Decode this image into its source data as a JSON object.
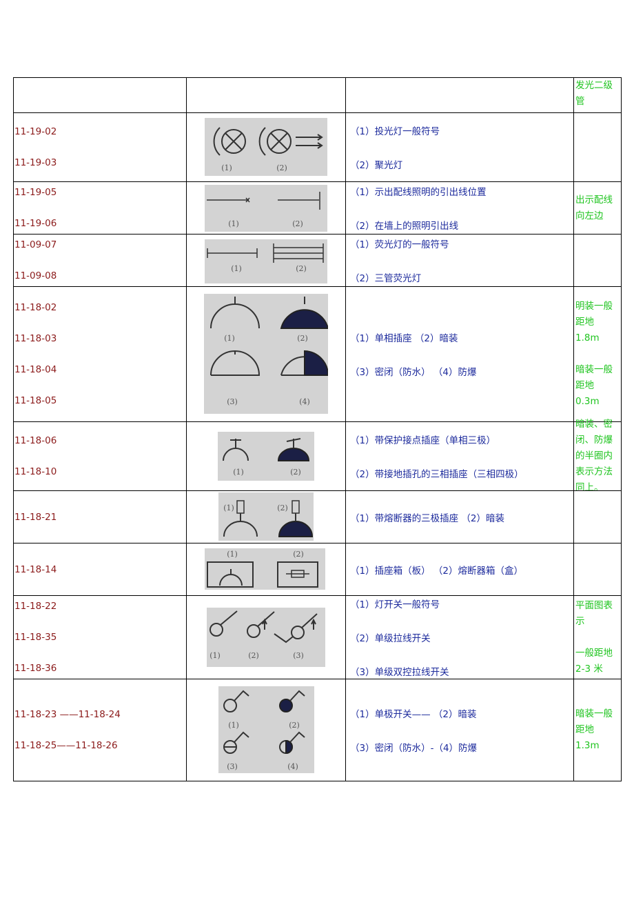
{
  "header": {
    "note": "发光二级管"
  },
  "rows": [
    {
      "codes": [
        "11-19-02",
        "11-19-03"
      ],
      "desc": [
        "（1）投光灯一般符号",
        "（2）聚光灯"
      ],
      "notes": [],
      "symbol_labels": [
        "(1)",
        "(2)"
      ]
    },
    {
      "codes": [
        "11-19-05",
        "11-19-06"
      ],
      "desc": [
        "（1）示出配线照明的引出线位置",
        "（2）在墙上的照明引出线"
      ],
      "notes": [
        "出示配线向左边"
      ],
      "symbol_labels": [
        "(1)",
        "(2)"
      ]
    },
    {
      "codes": [
        "11-09-07",
        "11-09-08"
      ],
      "desc": [
        "（1）荧光灯的一般符号",
        "（2）三管荧光灯"
      ],
      "notes": [],
      "symbol_labels": [
        "(1)",
        "(2)"
      ]
    },
    {
      "codes": [
        "11-18-02",
        "11-18-03",
        "11-18-04",
        "11-18-05"
      ],
      "desc": [
        "（1）单相插座 （2）暗装",
        "（3）密闭（防水） （4）防爆"
      ],
      "notes": [
        "明装一般距地 1.8m",
        "暗装一般距地 0.3m"
      ],
      "symbol_labels": [
        "(1)",
        "(2)",
        "(3)",
        "(4)"
      ]
    },
    {
      "codes": [
        "11-18-06",
        "11-18-10"
      ],
      "desc": [
        "（1）带保护接点插座（单相三极）",
        "（2）带接地插孔的三相插座（三相四极）"
      ],
      "notes": [
        "暗装、密闭、防爆的半圈内表示方法同上。"
      ],
      "symbol_labels": [
        "(1)",
        "(2)"
      ]
    },
    {
      "codes": [
        "11-18-21"
      ],
      "desc": [
        "（1）带熔断器的三极插座 （2）暗装"
      ],
      "notes": [],
      "symbol_labels": [
        "(1)",
        "(2)"
      ]
    },
    {
      "codes": [
        "11-18-14"
      ],
      "desc": [
        "（1）插座箱（板） （2）熔断器箱（盒）"
      ],
      "notes": [],
      "symbol_labels": [
        "(1)",
        "(2)"
      ]
    },
    {
      "codes": [
        "11-18-22",
        "11-18-35",
        "11-18-36"
      ],
      "desc": [
        "（1）灯开关一般符号",
        "（2）单级拉线开关",
        "（3）单级双控拉线开关"
      ],
      "notes": [
        "平面图表示",
        "一般距地2-3 米"
      ],
      "symbol_labels": [
        "(1)",
        "(2)",
        "(3)"
      ]
    },
    {
      "codes": [
        "11-18-23 ——11-18-24",
        "11-18-25——11-18-26"
      ],
      "desc": [
        "（1）单极开关—— （2）暗装",
        "（3）密闭（防水）-（4）防爆"
      ],
      "notes": [
        "暗装一般距地 1.3m"
      ],
      "symbol_labels": [
        "(1)",
        "(2)",
        "(3)",
        "(4)"
      ]
    }
  ]
}
